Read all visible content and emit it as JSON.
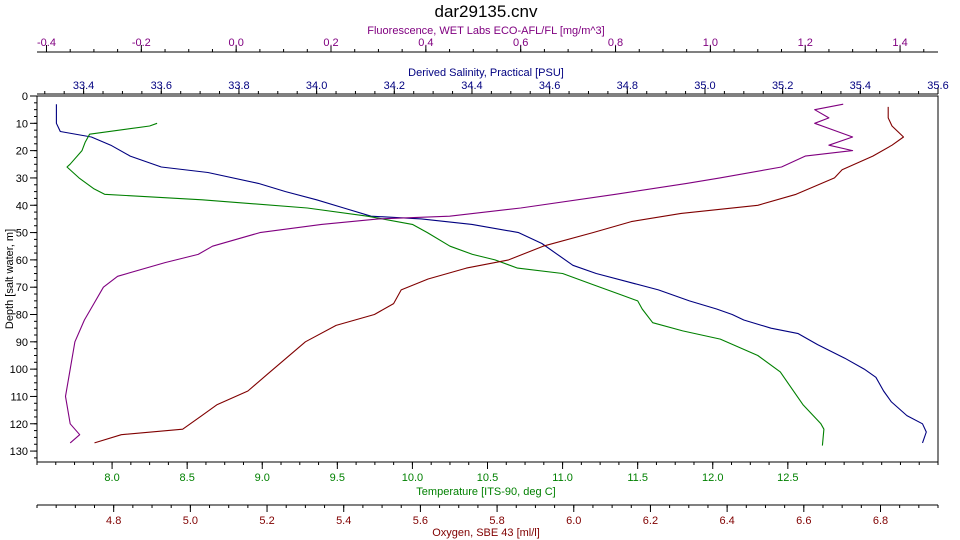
{
  "chart_data": {
    "type": "line",
    "title": "dar29135.cnv",
    "y_axis": {
      "label": "Depth [salt water, m]",
      "range": [
        0,
        134
      ],
      "inverted": true,
      "ticks": [
        0,
        10,
        20,
        30,
        40,
        50,
        60,
        70,
        80,
        90,
        100,
        110,
        120,
        130
      ],
      "tick_labels": [
        "0",
        "10",
        "20",
        "30",
        "40",
        "50",
        "60",
        "70",
        "80",
        "90",
        "100",
        "110",
        "120",
        "130"
      ]
    },
    "x_axes": [
      {
        "id": "fluorescence",
        "label": "Fluorescence, WET Labs ECO-AFL/FL [mg/m^3]",
        "position": "top-outer",
        "color": "#800080",
        "range": [
          -0.42,
          1.48
        ],
        "ticks": [
          -0.4,
          -0.2,
          0.0,
          0.2,
          0.4,
          0.6,
          0.8,
          1.0,
          1.2,
          1.4
        ],
        "tick_labels": [
          "-0.4",
          "-0.2",
          "0.0",
          "0.2",
          "0.4",
          "0.6",
          "0.8",
          "1.0",
          "1.2",
          "1.4"
        ]
      },
      {
        "id": "salinity",
        "label": "Derived Salinity, Practical [PSU]",
        "position": "top-inner",
        "color": "#000080",
        "range": [
          33.28,
          35.6
        ],
        "ticks": [
          33.4,
          33.6,
          33.8,
          34.0,
          34.2,
          34.4,
          34.6,
          34.8,
          35.0,
          35.2,
          35.4,
          35.6
        ],
        "tick_labels": [
          "33.4",
          "33.6",
          "33.8",
          "34.0",
          "34.2",
          "34.4",
          "34.6",
          "34.8",
          "35.0",
          "35.2",
          "35.4",
          "35.6"
        ]
      },
      {
        "id": "temperature",
        "label": "Temperature [ITS-90, deg C]",
        "position": "bottom-inner",
        "color": "#008000",
        "range": [
          7.5,
          13.5
        ],
        "ticks": [
          8.0,
          8.5,
          9.0,
          9.5,
          10.0,
          10.5,
          11.0,
          11.5,
          12.0,
          12.5
        ],
        "tick_labels": [
          "8.0",
          "8.5",
          "9.0",
          "9.5",
          "10.0",
          "10.5",
          "11.0",
          "11.5",
          "12.0",
          "12.5"
        ]
      },
      {
        "id": "oxygen",
        "label": "Oxygen, SBE 43 [ml/l]",
        "position": "bottom-outer",
        "color": "#800000",
        "range": [
          4.6,
          6.95
        ],
        "ticks": [
          4.8,
          5.0,
          5.2,
          5.4,
          5.6,
          5.8,
          6.0,
          6.2,
          6.4,
          6.6,
          6.8
        ],
        "tick_labels": [
          "4.8",
          "5.0",
          "5.2",
          "5.4",
          "5.6",
          "5.8",
          "6.0",
          "6.2",
          "6.4",
          "6.6",
          "6.8"
        ]
      }
    ],
    "grid": false,
    "series": [
      {
        "axis": "salinity",
        "color": "#000080",
        "points": [
          [
            33.33,
            3
          ],
          [
            33.33,
            10
          ],
          [
            33.34,
            13
          ],
          [
            33.42,
            15
          ],
          [
            33.47,
            18
          ],
          [
            33.52,
            22
          ],
          [
            33.6,
            26
          ],
          [
            33.72,
            28
          ],
          [
            33.85,
            32
          ],
          [
            33.92,
            35
          ],
          [
            34.0,
            38
          ],
          [
            34.07,
            41
          ],
          [
            34.14,
            44
          ],
          [
            34.27,
            45
          ],
          [
            34.4,
            47
          ],
          [
            34.52,
            50
          ],
          [
            34.58,
            54
          ],
          [
            34.62,
            58
          ],
          [
            34.66,
            62
          ],
          [
            34.72,
            65
          ],
          [
            34.8,
            68
          ],
          [
            34.88,
            71
          ],
          [
            34.96,
            75
          ],
          [
            35.03,
            78
          ],
          [
            35.07,
            80
          ],
          [
            35.1,
            82
          ],
          [
            35.17,
            85
          ],
          [
            35.24,
            87
          ],
          [
            35.29,
            91
          ],
          [
            35.36,
            96
          ],
          [
            35.41,
            100
          ],
          [
            35.44,
            103
          ],
          [
            35.46,
            108
          ],
          [
            35.48,
            112
          ],
          [
            35.52,
            117
          ],
          [
            35.56,
            120
          ],
          [
            35.57,
            123
          ],
          [
            35.56,
            127
          ]
        ]
      },
      {
        "axis": "temperature",
        "color": "#008000",
        "points": [
          [
            8.3,
            10
          ],
          [
            8.25,
            11
          ],
          [
            7.85,
            14
          ],
          [
            7.82,
            17
          ],
          [
            7.8,
            20
          ],
          [
            7.72,
            25
          ],
          [
            7.7,
            26
          ],
          [
            7.78,
            30
          ],
          [
            7.88,
            34
          ],
          [
            7.95,
            36
          ],
          [
            8.6,
            38
          ],
          [
            9.3,
            41
          ],
          [
            9.7,
            44
          ],
          [
            10.0,
            47
          ],
          [
            10.1,
            50
          ],
          [
            10.25,
            55
          ],
          [
            10.4,
            58
          ],
          [
            10.55,
            60
          ],
          [
            10.7,
            63
          ],
          [
            11.0,
            65
          ],
          [
            11.2,
            69
          ],
          [
            11.4,
            73
          ],
          [
            11.5,
            75
          ],
          [
            11.53,
            78
          ],
          [
            11.6,
            83
          ],
          [
            11.8,
            86
          ],
          [
            12.05,
            89
          ],
          [
            12.3,
            95
          ],
          [
            12.45,
            101
          ],
          [
            12.5,
            105
          ],
          [
            12.6,
            113
          ],
          [
            12.72,
            120
          ],
          [
            12.74,
            122
          ],
          [
            12.73,
            128
          ]
        ]
      },
      {
        "axis": "fluorescence",
        "color": "#800080",
        "points": [
          [
            1.28,
            3
          ],
          [
            1.22,
            5
          ],
          [
            1.25,
            8
          ],
          [
            1.22,
            10
          ],
          [
            1.3,
            15
          ],
          [
            1.25,
            18
          ],
          [
            1.3,
            20
          ],
          [
            1.2,
            22
          ],
          [
            1.15,
            26
          ],
          [
            1.02,
            30
          ],
          [
            0.95,
            32
          ],
          [
            0.8,
            36
          ],
          [
            0.6,
            41
          ],
          [
            0.45,
            44
          ],
          [
            0.3,
            45
          ],
          [
            0.18,
            47
          ],
          [
            0.05,
            50
          ],
          [
            -0.05,
            55
          ],
          [
            -0.08,
            58
          ],
          [
            -0.15,
            61
          ],
          [
            -0.25,
            66
          ],
          [
            -0.28,
            70
          ],
          [
            -0.3,
            76
          ],
          [
            -0.32,
            82
          ],
          [
            -0.34,
            90
          ],
          [
            -0.35,
            100
          ],
          [
            -0.36,
            110
          ],
          [
            -0.35,
            120
          ],
          [
            -0.33,
            124
          ],
          [
            -0.35,
            127
          ]
        ]
      },
      {
        "axis": "oxygen",
        "color": "#800000",
        "points": [
          [
            6.82,
            4
          ],
          [
            6.82,
            8
          ],
          [
            6.83,
            11
          ],
          [
            6.86,
            15
          ],
          [
            6.83,
            18
          ],
          [
            6.78,
            22
          ],
          [
            6.7,
            27
          ],
          [
            6.68,
            30
          ],
          [
            6.58,
            36
          ],
          [
            6.48,
            40
          ],
          [
            6.28,
            43
          ],
          [
            6.15,
            46
          ],
          [
            6.05,
            50
          ],
          [
            5.92,
            55
          ],
          [
            5.83,
            60
          ],
          [
            5.72,
            63
          ],
          [
            5.62,
            67
          ],
          [
            5.55,
            71
          ],
          [
            5.53,
            76
          ],
          [
            5.48,
            80
          ],
          [
            5.38,
            84
          ],
          [
            5.3,
            90
          ],
          [
            5.25,
            96
          ],
          [
            5.2,
            102
          ],
          [
            5.15,
            108
          ],
          [
            5.07,
            113
          ],
          [
            5.03,
            117
          ],
          [
            4.98,
            122
          ],
          [
            4.82,
            124
          ],
          [
            4.75,
            127
          ]
        ]
      }
    ]
  }
}
